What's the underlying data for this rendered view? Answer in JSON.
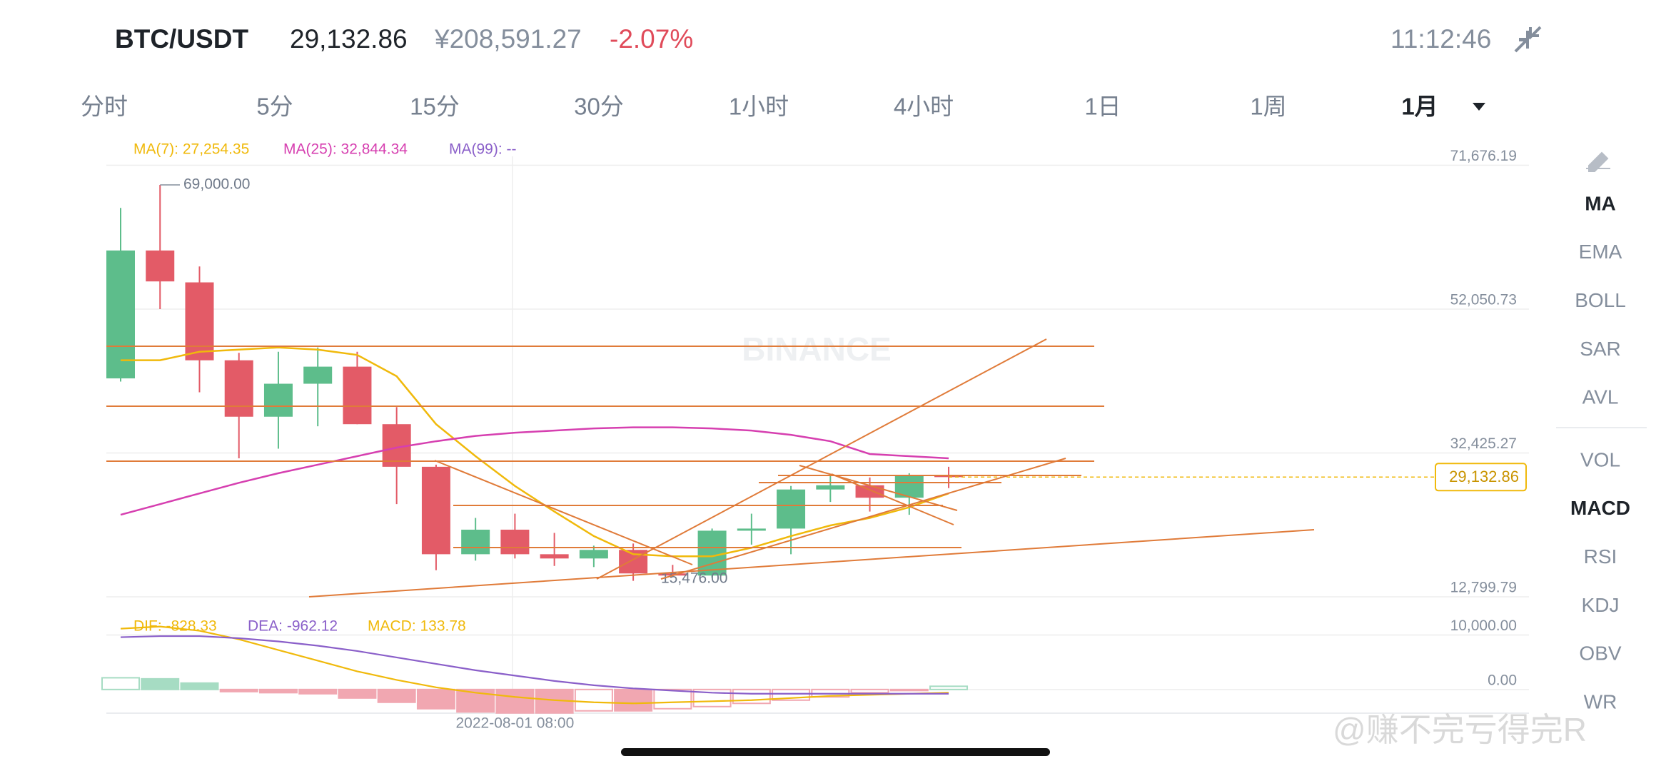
{
  "header": {
    "pair": "BTC/USDT",
    "price": "29,132.86",
    "cny_price": "¥208,591.27",
    "change": "-2.07%",
    "time": "11:12:46"
  },
  "tabs": [
    "分时",
    "5分",
    "15分",
    "30分",
    "1小时",
    "4小时",
    "1日",
    "1周",
    "1月"
  ],
  "main_indicators": [
    "MA",
    "EMA",
    "BOLL",
    "SAR",
    "AVL"
  ],
  "sub_indicators": [
    "VOL",
    "MACD",
    "RSI",
    "KDJ",
    "OBV",
    "WR"
  ],
  "watermarks": [
    "BINANCE",
    "@赚不完亏得完R"
  ],
  "chart_data": [
    {
      "type": "candlestick",
      "categories": [
        null,
        null,
        null,
        null,
        null,
        null,
        null,
        null,
        null,
        null,
        "2022-08-01 08:00",
        null,
        null,
        null,
        null,
        null,
        null,
        null,
        null,
        null,
        null,
        null
      ],
      "open": [
        42600,
        60050,
        55700,
        45070,
        37370,
        41870,
        44200,
        36350,
        30540,
        18610,
        21960,
        18610,
        18030,
        19200,
        15990,
        15700,
        21820,
        22110,
        27440,
        28020,
        26320,
        29370
      ],
      "high": [
        65860,
        69000,
        57870,
        46090,
        46230,
        46820,
        46230,
        38680,
        30830,
        23560,
        24140,
        21520,
        19780,
        20070,
        17160,
        22110,
        24140,
        27920,
        29370,
        29080,
        29660,
        30540
      ],
      "low": [
        42170,
        52050,
        40710,
        31700,
        33010,
        36060,
        36350,
        25450,
        16430,
        17740,
        18030,
        17010,
        16860,
        14980,
        15476,
        15410,
        19920,
        18610,
        25740,
        24430,
        23990,
        27630
      ],
      "close": [
        60050,
        55830,
        45070,
        37370,
        41870,
        44200,
        36350,
        30540,
        18610,
        21960,
        18610,
        18030,
        19200,
        15990,
        15700,
        21820,
        22110,
        27440,
        28020,
        26320,
        29370,
        29130
      ],
      "up_color": "#5dbd8b",
      "down_color": "#e35b67",
      "series": [
        {
          "name": "MA(7): 27,254.35",
          "color": "#f0b90b",
          "values": [
            45073,
            45073,
            46236,
            46527,
            46817,
            46527,
            45800,
            42892,
            36350,
            31989,
            27918,
            24430,
            21086,
            18615,
            18324,
            18324,
            19487,
            21086,
            22540,
            23558,
            25012,
            26902
          ]
        },
        {
          "name": "MA(25): 32,844.34",
          "color": "#d63fb0",
          "values": [
            23993,
            25447,
            26902,
            28356,
            29664,
            30827,
            31990,
            33153,
            34025,
            34752,
            35188,
            35479,
            35770,
            35915,
            35915,
            35770,
            35479,
            34898,
            34025,
            32280,
            31990,
            31700
          ]
        },
        {
          "name": "MA(99): --",
          "color": "#8a5fc9"
        }
      ],
      "ylim": [
        12799.79,
        71676.19
      ],
      "yticks": [
        {
          "value": 71676.19,
          "label": "71,676.19"
        },
        {
          "value": 52050.73,
          "label": "52,050.73"
        },
        {
          "value": 32425.27,
          "label": "32,425.27"
        },
        {
          "value": 12799.79,
          "label": "12,799.79"
        }
      ],
      "last_price": {
        "value": 29132.86,
        "label": "29,132.86"
      },
      "annotations": [
        "69,000.00",
        "15,476.00"
      ],
      "grid": true
    },
    {
      "type": "macd",
      "histogram": [
        2150,
        1960,
        1180,
        -390,
        -590,
        -780,
        -1570,
        -2350,
        -3530,
        -4120,
        -4310,
        -4310,
        -3920,
        -3920,
        -3530,
        -3140,
        -2550,
        -1960,
        -1370,
        -590,
        -200,
        590
      ],
      "up_color": "#a6dcc3",
      "down_color": "#f1a7b1",
      "series": [
        {
          "name": "DIF: -828.33",
          "color": "#f0b90b",
          "values": [
            11170,
            11560,
            10780,
            9210,
            7250,
            5290,
            3330,
            1760,
            390,
            -590,
            -1370,
            -1960,
            -2350,
            -2550,
            -2350,
            -2160,
            -1960,
            -1570,
            -1180,
            -980,
            -780,
            -590
          ]
        },
        {
          "name": "DEA: -962.12",
          "color": "#8a5fc9",
          "values": [
            9600,
            9800,
            9800,
            9410,
            8820,
            8040,
            7060,
            5880,
            4700,
            3530,
            2550,
            1570,
            780,
            200,
            -200,
            -590,
            -780,
            -780,
            -780,
            -780,
            -780,
            -780
          ]
        },
        {
          "name": "MACD: 133.78",
          "color": "#f0b90b"
        }
      ],
      "ylim": [
        -4400,
        14000
      ],
      "yticks": [
        {
          "value": 10000,
          "label": "10,000.00"
        },
        {
          "value": 0,
          "label": "0.00"
        }
      ],
      "grid": true
    }
  ]
}
